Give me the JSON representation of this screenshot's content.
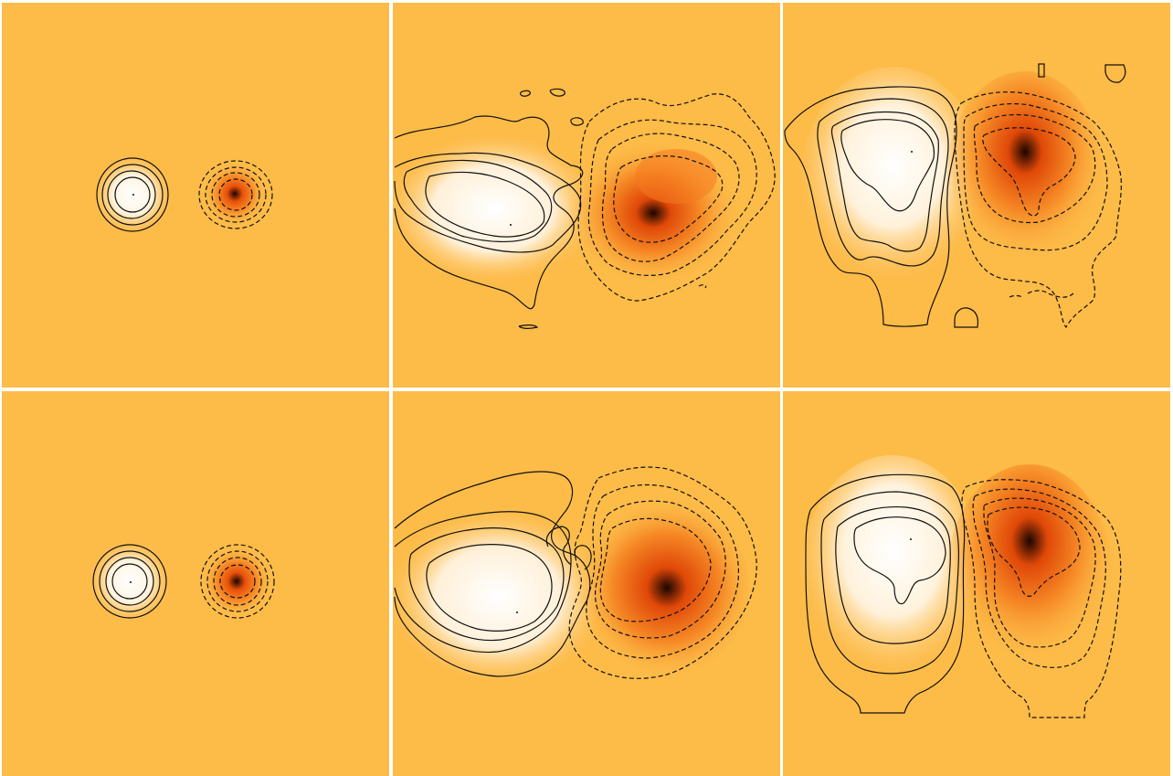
{
  "figure": {
    "panels": [
      {
        "id": "panel-top-left"
      },
      {
        "id": "panel-top-middle"
      },
      {
        "id": "panel-top-right"
      },
      {
        "id": "panel-bottom-left"
      },
      {
        "id": "panel-bottom-middle"
      },
      {
        "id": "panel-bottom-right"
      }
    ],
    "colors": {
      "background": "#fdbb48",
      "positive_peak": "#ffffff",
      "negative_mid": "#f07010",
      "negative_peak": "#1a0500",
      "contour": "#111111"
    }
  }
}
